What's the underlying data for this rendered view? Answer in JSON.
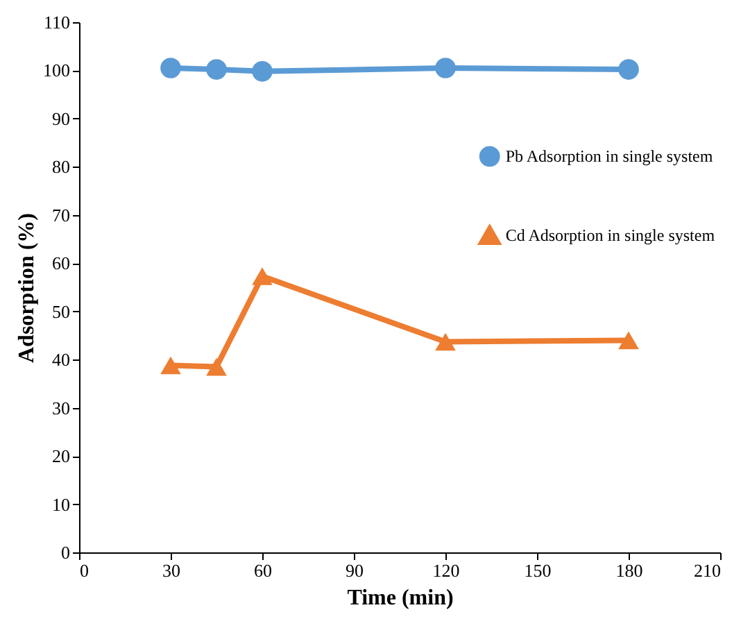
{
  "chart_data": {
    "type": "line",
    "xlabel": "Time (min)",
    "ylabel": "Adsorption (%)",
    "x": [
      30,
      45,
      60,
      120,
      180
    ],
    "series": [
      {
        "name": "Pb Adsorption in single system",
        "color": "#5b9bd5",
        "marker": "circle",
        "values": [
          100.5,
          100.2,
          99.8,
          100.5,
          100.2
        ]
      },
      {
        "name": "Cd Adsorption in single system",
        "color": "#ed7d31",
        "marker": "triangle",
        "values": [
          38.8,
          38.5,
          57.3,
          43.7,
          44.0
        ]
      }
    ],
    "xlim": [
      0,
      210
    ],
    "xticks": [
      0,
      30,
      60,
      90,
      120,
      150,
      180,
      210
    ],
    "ylim": [
      0,
      110
    ],
    "yticks": [
      0,
      10,
      20,
      30,
      40,
      50,
      60,
      70,
      80,
      90,
      100,
      110
    ],
    "legend": "right",
    "line_style": "solid"
  }
}
